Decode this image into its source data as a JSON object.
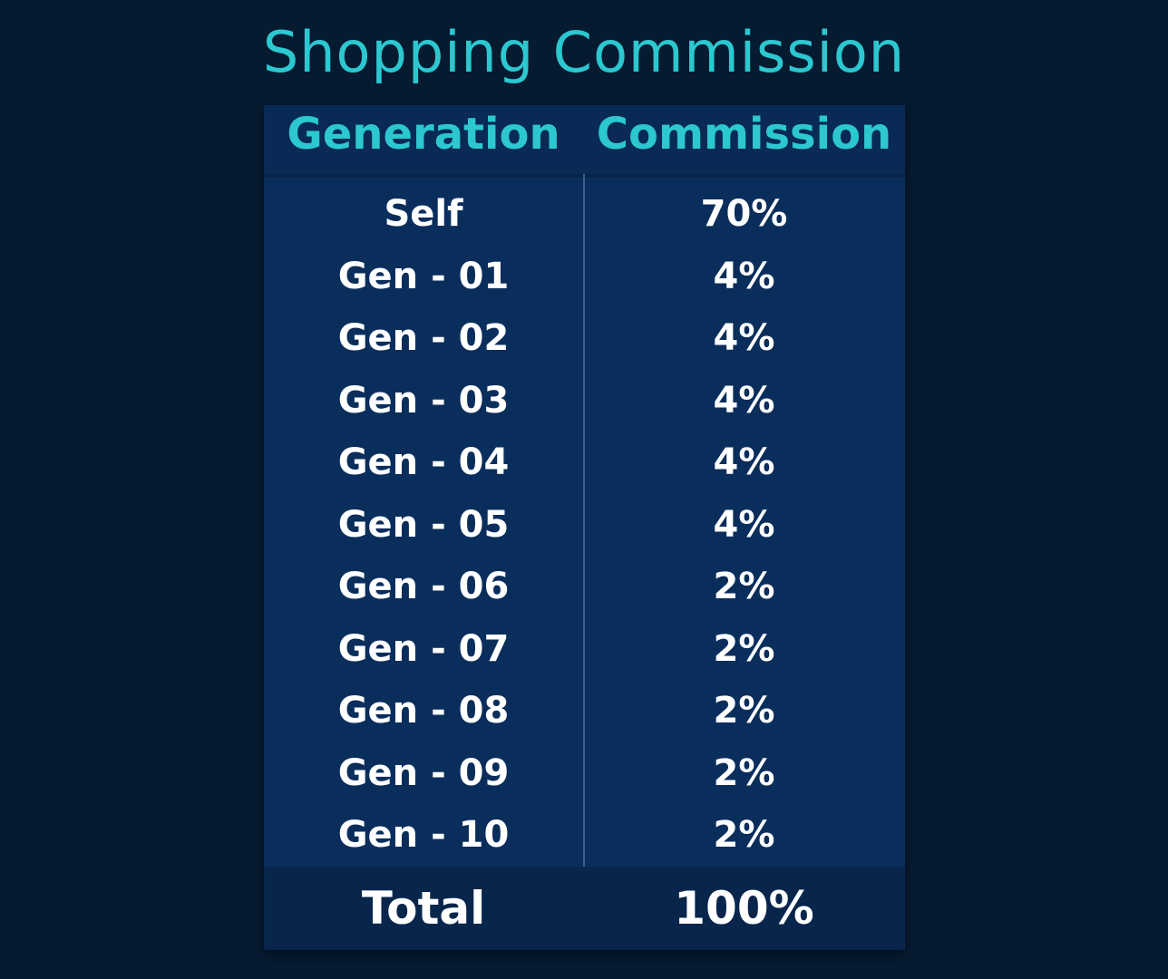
{
  "title": "Shopping Commission",
  "table": {
    "headers": {
      "generation": "Generation",
      "commission": "Commission"
    },
    "rows": [
      {
        "generation": "Self",
        "commission": "70%"
      },
      {
        "generation": "Gen - 01",
        "commission": "4%"
      },
      {
        "generation": "Gen - 02",
        "commission": "4%"
      },
      {
        "generation": "Gen - 03",
        "commission": "4%"
      },
      {
        "generation": "Gen - 04",
        "commission": "4%"
      },
      {
        "generation": "Gen - 05",
        "commission": "4%"
      },
      {
        "generation": "Gen - 06",
        "commission": "2%"
      },
      {
        "generation": "Gen - 07",
        "commission": "2%"
      },
      {
        "generation": "Gen - 08",
        "commission": "2%"
      },
      {
        "generation": "Gen - 09",
        "commission": "2%"
      },
      {
        "generation": "Gen - 10",
        "commission": "2%"
      }
    ],
    "total": {
      "label": "Total",
      "value": "100%"
    }
  },
  "colors": {
    "background": "#061a30",
    "table": "#0a2e5c",
    "accent": "#2cc7cf",
    "text": "#ffffff"
  }
}
